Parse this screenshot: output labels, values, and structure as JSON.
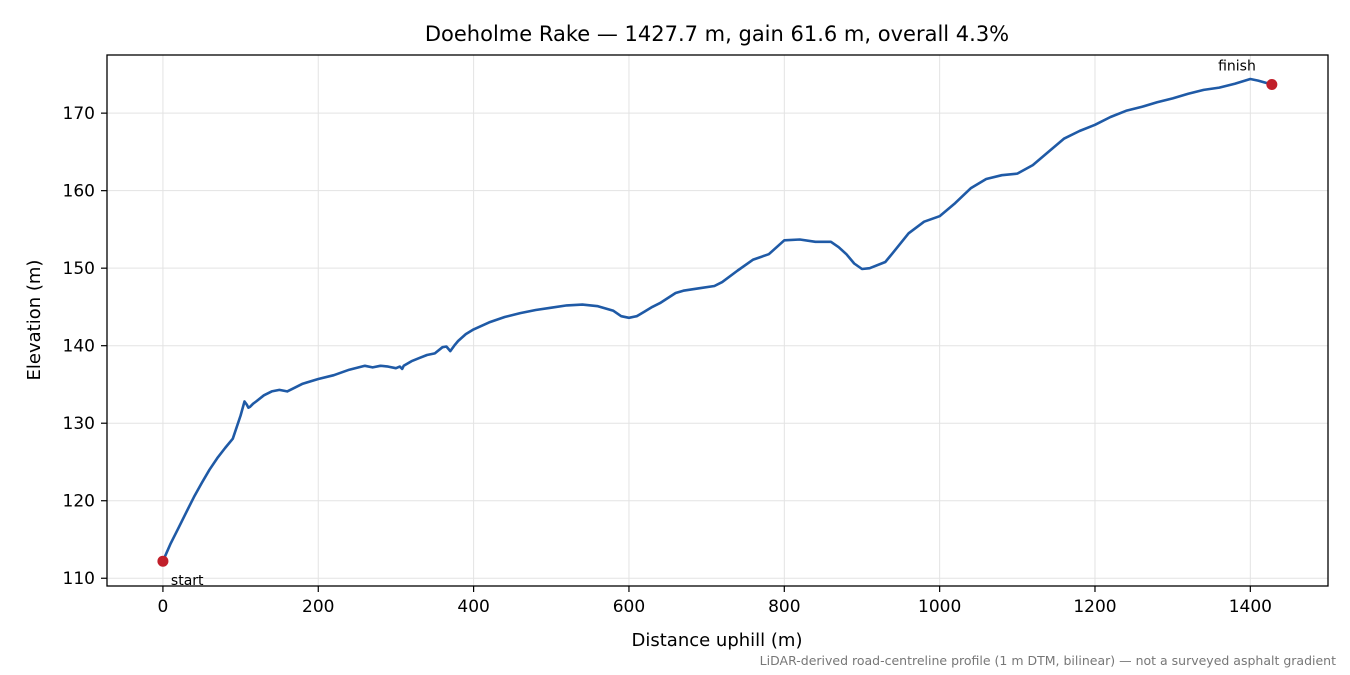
{
  "chart_data": {
    "type": "line",
    "title": "Doeholme Rake — 1427.7 m, gain 61.6 m, overall 4.3%",
    "xlabel": "Distance uphill (m)",
    "ylabel": "Elevation (m)",
    "caption": "LiDAR-derived road-centreline profile (1 m DTM, bilinear) — not a surveyed asphalt gradient",
    "xlim": [
      -72,
      1500
    ],
    "ylim": [
      109,
      177.5
    ],
    "xticks": [
      0,
      200,
      400,
      600,
      800,
      1000,
      1200,
      1400
    ],
    "yticks": [
      110,
      120,
      130,
      140,
      150,
      160,
      170
    ],
    "grid": true,
    "line_color": "#1f5aa6",
    "marker_color": "#c11f2a",
    "series": [
      {
        "x": [
          0,
          10,
          20,
          30,
          40,
          50,
          60,
          70,
          80,
          90,
          100,
          105,
          108,
          110,
          112,
          116,
          120,
          130,
          140,
          150,
          160,
          170,
          180,
          200,
          220,
          240,
          260,
          270,
          280,
          290,
          300,
          305,
          308,
          310,
          320,
          330,
          340,
          350,
          360,
          365,
          370,
          375,
          380,
          390,
          400,
          420,
          440,
          460,
          480,
          500,
          520,
          540,
          560,
          580,
          590,
          600,
          610,
          620,
          630,
          640,
          660,
          670,
          690,
          710,
          720,
          740,
          760,
          780,
          800,
          820,
          840,
          860,
          870,
          880,
          890,
          900,
          910,
          930,
          940,
          960,
          980,
          1000,
          1020,
          1040,
          1060,
          1080,
          1100,
          1120,
          1140,
          1160,
          1180,
          1200,
          1220,
          1240,
          1260,
          1280,
          1300,
          1320,
          1340,
          1360,
          1380,
          1400,
          1410,
          1427.7
        ],
        "y": [
          112.2,
          114.5,
          116.5,
          118.5,
          120.5,
          122.3,
          124.0,
          125.5,
          126.8,
          128.0,
          131.0,
          132.8,
          132.4,
          132.0,
          132.1,
          132.5,
          132.8,
          133.6,
          134.1,
          134.3,
          134.1,
          134.6,
          135.1,
          135.7,
          136.2,
          136.9,
          137.4,
          137.2,
          137.4,
          137.3,
          137.1,
          137.3,
          137.0,
          137.4,
          138.0,
          138.4,
          138.8,
          139.0,
          139.8,
          139.9,
          139.3,
          140.0,
          140.6,
          141.5,
          142.1,
          143.0,
          143.7,
          144.2,
          144.6,
          144.9,
          145.2,
          145.3,
          145.1,
          144.5,
          143.8,
          143.6,
          143.8,
          144.4,
          145.0,
          145.5,
          146.8,
          147.1,
          147.4,
          147.7,
          148.2,
          149.7,
          151.1,
          151.8,
          153.6,
          153.7,
          153.4,
          153.4,
          152.7,
          151.8,
          150.6,
          149.9,
          150.0,
          150.8,
          152.0,
          154.5,
          156.0,
          156.7,
          158.4,
          160.3,
          161.5,
          162.0,
          162.2,
          163.3,
          165.0,
          166.7,
          167.7,
          168.5,
          169.5,
          170.3,
          170.8,
          171.4,
          171.9,
          172.5,
          173.0,
          173.3,
          173.8,
          174.4,
          174.2,
          173.7
        ]
      }
    ],
    "markers": [
      {
        "label": "start",
        "x": 0,
        "y": 112.2
      },
      {
        "label": "finish",
        "x": 1427.7,
        "y": 173.7
      }
    ]
  }
}
